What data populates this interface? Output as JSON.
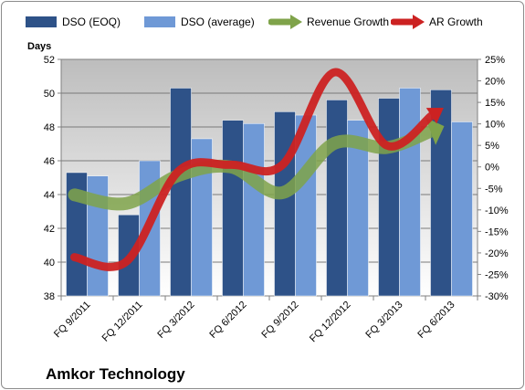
{
  "chart_data": {
    "type": "bar",
    "title": "Amkor Technology",
    "ylabel": "Days",
    "categories": [
      "FQ 9/2011",
      "FQ 12/2011",
      "FQ 3/2012",
      "FQ 6/2012",
      "FQ 9/2012",
      "FQ 12/2012",
      "FQ 3/2013",
      "FQ 6/2013"
    ],
    "series": [
      {
        "name": "DSO (EOQ)",
        "kind": "bar",
        "axis": "left",
        "color": "#2e5288",
        "values": [
          45.3,
          42.8,
          50.3,
          48.4,
          48.9,
          49.6,
          49.7,
          50.2
        ]
      },
      {
        "name": "DSO (average)",
        "kind": "bar",
        "axis": "left",
        "color": "#6f99d6",
        "values": [
          45.1,
          46.0,
          47.3,
          48.2,
          48.7,
          48.4,
          50.3,
          48.3
        ]
      },
      {
        "name": "Revenue Growth",
        "kind": "arrow-line",
        "axis": "right",
        "color": "#7fa34a",
        "values": [
          -6.5,
          -8.5,
          -2.0,
          0.0,
          -6.0,
          5.5,
          4.5,
          9.0
        ]
      },
      {
        "name": "AR Growth",
        "kind": "arrow-line",
        "axis": "right",
        "color": "#cc2222",
        "values": [
          -21.0,
          -22.0,
          -1.0,
          0.5,
          0.5,
          22.0,
          5.0,
          13.0
        ]
      }
    ],
    "ylim": [
      38,
      52
    ],
    "yticks": [
      "38",
      "40",
      "42",
      "44",
      "46",
      "48",
      "50",
      "52"
    ],
    "y2lim": [
      -30,
      25
    ],
    "y2ticks": [
      "-30%",
      "-25%",
      "-20%",
      "-15%",
      "-10%",
      "-5%",
      "0%",
      "5%",
      "10%",
      "15%",
      "20%",
      "25%"
    ],
    "grid": true,
    "legend_position": "top"
  }
}
